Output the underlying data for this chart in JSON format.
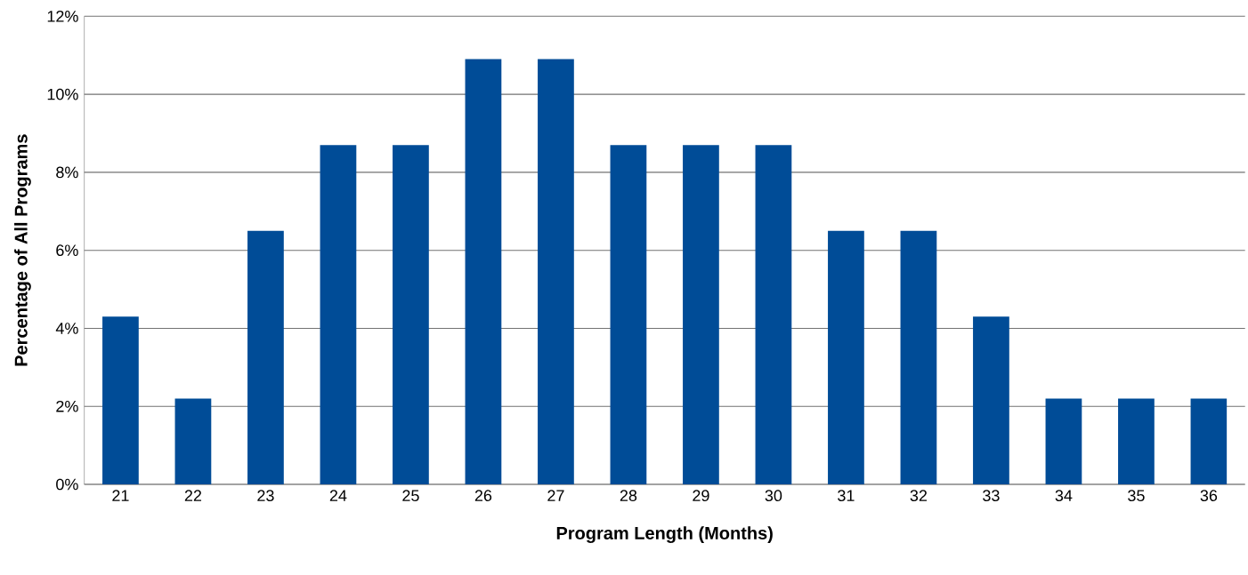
{
  "chart_data": {
    "type": "bar",
    "xlabel": "Program Length (Months)",
    "ylabel": "Percentage of All Programs",
    "categories": [
      "21",
      "22",
      "23",
      "24",
      "25",
      "26",
      "27",
      "28",
      "29",
      "30",
      "31",
      "32",
      "33",
      "34",
      "35",
      "36"
    ],
    "values": [
      4.3,
      2.2,
      6.5,
      8.7,
      8.7,
      10.9,
      10.9,
      8.7,
      8.7,
      8.7,
      6.5,
      6.5,
      4.3,
      2.2,
      2.2,
      2.2
    ],
    "color": "#004c97",
    "ylim": [
      0,
      12
    ],
    "yticks": [
      {
        "value": 0,
        "label": "0%"
      },
      {
        "value": 2,
        "label": "2%"
      },
      {
        "value": 4,
        "label": "4%"
      },
      {
        "value": 6,
        "label": "6%"
      },
      {
        "value": 8,
        "label": "8%"
      },
      {
        "value": 10,
        "label": "10%"
      },
      {
        "value": 12,
        "label": "12%"
      }
    ],
    "grid": "y"
  }
}
